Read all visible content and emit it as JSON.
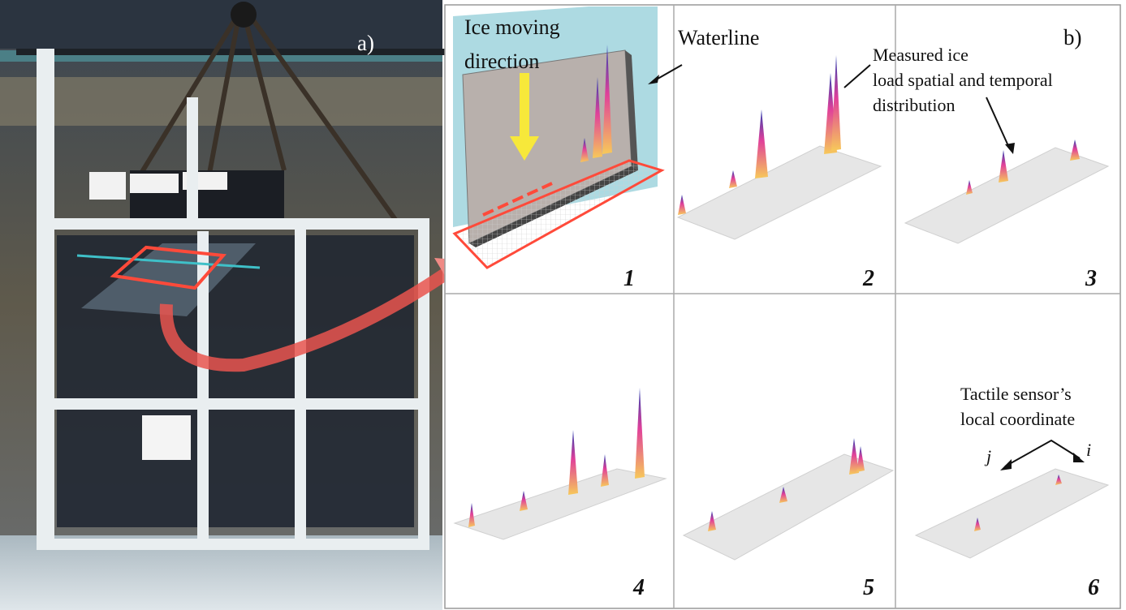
{
  "photo": {
    "label": "a)"
  },
  "panels": {
    "label": "b)",
    "numbers": [
      1,
      2,
      3,
      4,
      5,
      6
    ],
    "ice_direction": [
      "Ice moving",
      "direction"
    ],
    "waterline": "Waterline",
    "measured": [
      "Measured ice",
      "load spatial and temporal",
      "distribution"
    ],
    "sensor": [
      "Tactile sensor’s",
      "local coordinate"
    ],
    "axis_j": "j",
    "axis_i": "i"
  }
}
